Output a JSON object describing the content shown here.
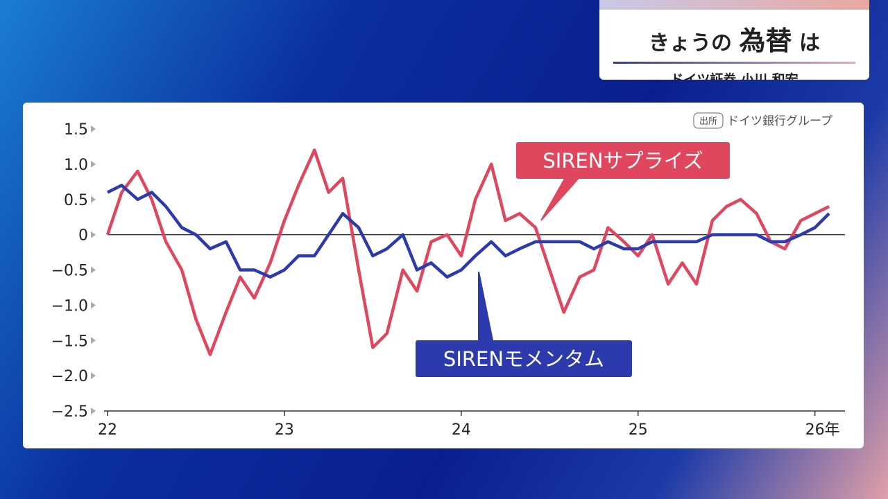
{
  "header": {
    "title_parts": [
      "きょうの",
      "為替",
      "は"
    ],
    "subtitle": "ドイツ証券 小川 和宏"
  },
  "chart_data": {
    "type": "line",
    "source_badge": "出所",
    "source": "ドイツ銀行グループ",
    "x": [
      22.0,
      22.08,
      22.17,
      22.25,
      22.33,
      22.42,
      22.5,
      22.58,
      22.67,
      22.75,
      22.83,
      22.92,
      23.0,
      23.08,
      23.17,
      23.25,
      23.33,
      23.42,
      23.5,
      23.58,
      23.67,
      23.75,
      23.83,
      23.92,
      24.0,
      24.08,
      24.17,
      24.25,
      24.33,
      24.42,
      24.5,
      24.58,
      24.67,
      24.75,
      24.83,
      24.92,
      25.0,
      25.08,
      25.17,
      25.25,
      25.33,
      25.42,
      25.5,
      25.58,
      25.67,
      25.75,
      25.83,
      25.92,
      26.0,
      26.08
    ],
    "series": [
      {
        "name": "SIRENサプライズ",
        "color": "#e0475f",
        "values": [
          0.0,
          0.6,
          0.9,
          0.5,
          -0.1,
          -0.5,
          -1.2,
          -1.7,
          -1.1,
          -0.6,
          -0.9,
          -0.4,
          0.2,
          0.7,
          1.2,
          0.6,
          0.8,
          -0.5,
          -1.6,
          -1.4,
          -0.5,
          -0.8,
          -0.1,
          0.0,
          -0.3,
          0.5,
          1.0,
          0.2,
          0.3,
          0.1,
          -0.5,
          -1.1,
          -0.6,
          -0.5,
          0.1,
          -0.1,
          -0.3,
          0.0,
          -0.7,
          -0.4,
          -0.7,
          0.2,
          0.4,
          0.5,
          0.3,
          -0.1,
          -0.2,
          0.2,
          0.3,
          0.4
        ]
      },
      {
        "name": "SIRENモメンタム",
        "color": "#2c3aad",
        "values": [
          0.6,
          0.7,
          0.5,
          0.6,
          0.4,
          0.1,
          0.0,
          -0.2,
          -0.1,
          -0.5,
          -0.5,
          -0.6,
          -0.5,
          -0.3,
          -0.3,
          0.0,
          0.3,
          0.1,
          -0.3,
          -0.2,
          0.0,
          -0.5,
          -0.4,
          -0.6,
          -0.5,
          -0.3,
          -0.1,
          -0.3,
          -0.2,
          -0.1,
          -0.1,
          -0.1,
          -0.1,
          -0.2,
          -0.1,
          -0.2,
          -0.2,
          -0.1,
          -0.1,
          -0.1,
          -0.1,
          0.0,
          0.0,
          0.0,
          0.0,
          -0.1,
          -0.1,
          0.0,
          0.1,
          0.3
        ]
      }
    ],
    "xlim": [
      21.98,
      26.15
    ],
    "xticks": [
      22,
      23,
      24,
      25,
      {
        "value": 26,
        "label": "26年"
      }
    ],
    "ylim": [
      -2.5,
      1.5
    ],
    "yticks": [
      1.5,
      {
        "value": 1,
        "label": "1.0"
      },
      0.5,
      0,
      {
        "value": -0.5,
        "label": "−0.5"
      },
      {
        "value": -1,
        "label": "−1.0"
      },
      {
        "value": -1.5,
        "label": "−1.5"
      },
      {
        "value": -2,
        "label": "−2.0"
      },
      {
        "value": -2.5,
        "label": "−2.5"
      }
    ],
    "zero_line": true
  }
}
